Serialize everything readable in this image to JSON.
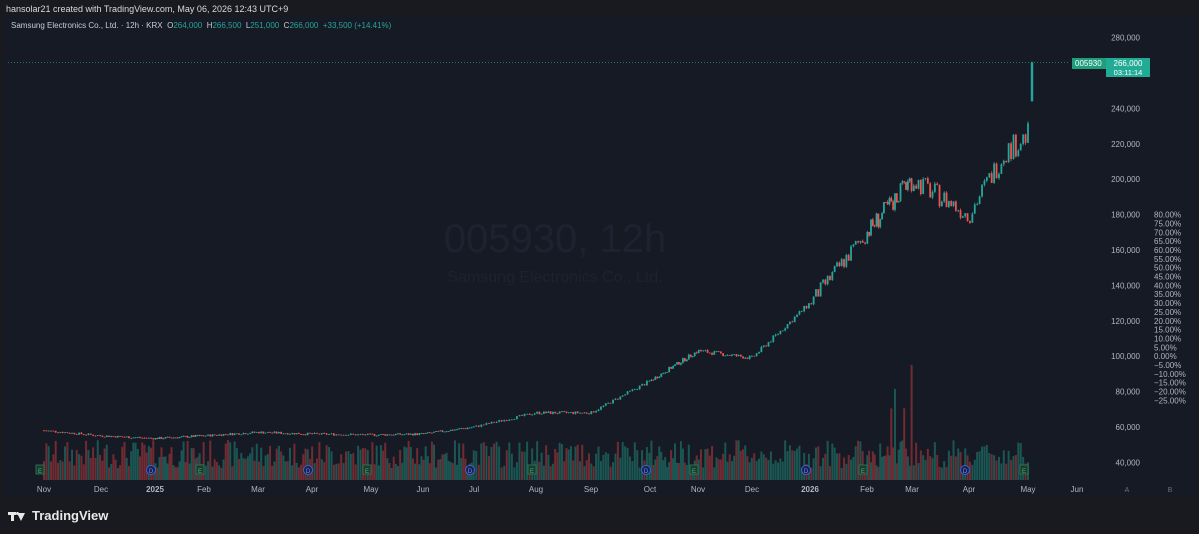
{
  "header": {
    "credit": "hansolar21 created with TradingView.com, May 06, 2026 12:43 UTC+9"
  },
  "legend": {
    "name": "Samsung Electronics Co., Ltd. · 12h · KRX",
    "o_label": "O",
    "o_value": "264,000",
    "h_label": "H",
    "h_value": "266,500",
    "l_label": "L",
    "l_value": "251,000",
    "c_label": "C",
    "c_value": "266,000",
    "change": "+33,500 (+14.41%)"
  },
  "watermark": {
    "line1": "005930, 12h",
    "line2": "Samsung Electronics Co., Ltd."
  },
  "price_label": {
    "symbol": "005930",
    "price": "266,000",
    "countdown": "03:11:14"
  },
  "footer": {
    "brand": "TradingView",
    "scale_btn_a": "A",
    "scale_btn_b": "B"
  },
  "colors": {
    "background": "#161a25",
    "up": "#26a69a",
    "down": "#ef5350",
    "text": "#b2b5be"
  },
  "chart_data": {
    "type": "candlestick",
    "interval": "12h",
    "ylim": [
      30000,
      290000
    ],
    "price_ticks": [
      40000,
      60000,
      80000,
      100000,
      120000,
      140000,
      160000,
      180000,
      200000,
      220000,
      240000,
      260000,
      280000
    ],
    "price_tick_labels": [
      "40,000",
      "60,000",
      "80,000",
      "100,000",
      "120,000",
      "140,000",
      "160,000",
      "180,000",
      "200,000",
      "220,000",
      "240,000",
      "260,000",
      "280,000"
    ],
    "pct_ticks": [
      -25,
      -20,
      -15,
      -10,
      -5,
      0,
      5,
      10,
      15,
      20,
      25,
      30,
      35,
      40,
      45,
      50,
      55,
      60,
      65,
      70,
      75,
      80
    ],
    "pct_tick_labels": [
      "−25.00%",
      "−20.00%",
      "−15.00%",
      "−10.00%",
      "−5.00%",
      "0.00%",
      "5.00%",
      "10.00%",
      "15.00%",
      "20.00%",
      "25.00%",
      "30.00%",
      "35.00%",
      "40.00%",
      "45.00%",
      "50.00%",
      "55.00%",
      "60.00%",
      "65.00%",
      "70.00%",
      "75.00%",
      "80.00%"
    ],
    "pct_base_price": 100000,
    "month_labels": [
      "Nov",
      "Dec",
      "2025",
      "Feb",
      "Mar",
      "Apr",
      "May",
      "Jun",
      "Jul",
      "Aug",
      "Sep",
      "Oct",
      "Nov",
      "Dec",
      "2026",
      "Feb",
      "Mar",
      "Apr",
      "May",
      "Jun"
    ],
    "month_bold": [
      false,
      false,
      true,
      false,
      false,
      false,
      false,
      false,
      false,
      false,
      false,
      false,
      false,
      false,
      true,
      false,
      false,
      false,
      false,
      false
    ],
    "event_markers": [
      {
        "month_index": 0,
        "kind": "E"
      },
      {
        "month_index": 2,
        "kind": "D"
      },
      {
        "month_index": 3,
        "kind": "E"
      },
      {
        "month_index": 5,
        "kind": "D"
      },
      {
        "month_index": 6,
        "kind": "E"
      },
      {
        "month_index": 8,
        "kind": "D"
      },
      {
        "month_index": 9,
        "kind": "E"
      },
      {
        "month_index": 11,
        "kind": "D"
      },
      {
        "month_index": 12,
        "kind": "E"
      },
      {
        "month_index": 14,
        "kind": "D"
      },
      {
        "month_index": 15,
        "kind": "E"
      },
      {
        "month_index": 17,
        "kind": "D"
      },
      {
        "month_index": 18,
        "kind": "E"
      }
    ],
    "price_path": [
      {
        "month": 0,
        "close": 58000
      },
      {
        "month": 1,
        "close": 55000
      },
      {
        "month": 2,
        "close": 53500
      },
      {
        "month": 3,
        "close": 55000
      },
      {
        "month": 4,
        "close": 57000
      },
      {
        "month": 5,
        "close": 56000
      },
      {
        "month": 6,
        "close": 55500
      },
      {
        "month": 7,
        "close": 56000
      },
      {
        "month": 8,
        "close": 60000
      },
      {
        "month": 9,
        "close": 68000
      },
      {
        "month": 10,
        "close": 68000
      },
      {
        "month": 11,
        "close": 86000
      },
      {
        "month": 12,
        "close": 103000
      },
      {
        "month": 13,
        "close": 99000
      },
      {
        "month": 14,
        "close": 130000
      },
      {
        "month": 15,
        "close": 170000
      },
      {
        "month": 16,
        "close": 200000
      },
      {
        "month": 17,
        "close": 180000
      },
      {
        "month": 17.6,
        "close": 215000
      },
      {
        "month": 18,
        "close": 225000
      },
      {
        "month": 18.05,
        "close": 266000
      }
    ],
    "last": {
      "open": 264000,
      "high": 266500,
      "low": 251000,
      "close": 266000
    }
  }
}
